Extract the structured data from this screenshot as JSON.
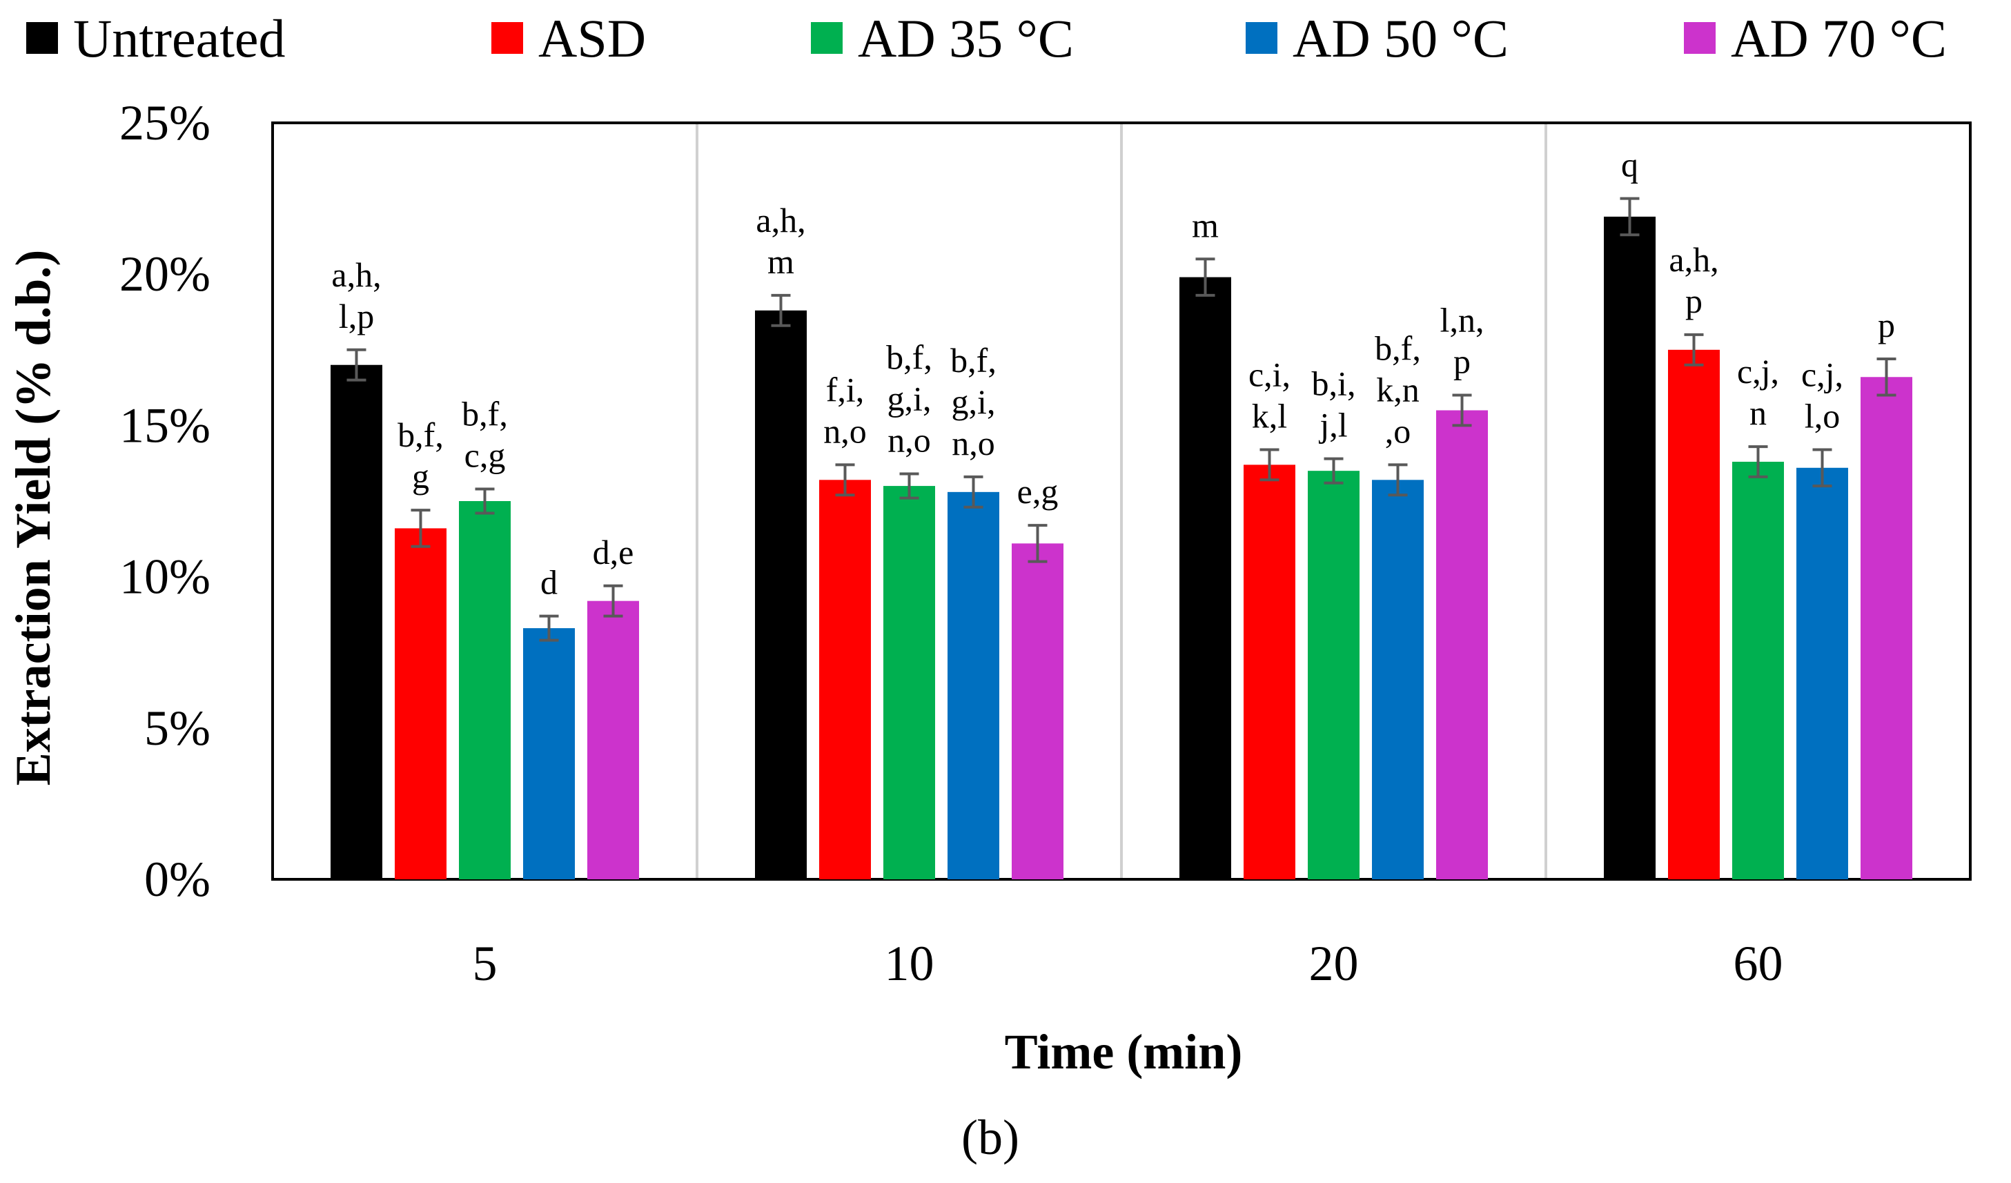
{
  "chart_data": {
    "type": "bar",
    "title": "",
    "panel_label": "(b)",
    "xlabel": "Time (min)",
    "ylabel": "Extraction Yield (% d.b.)",
    "ylim": [
      0,
      25
    ],
    "yticks": [
      0,
      5,
      10,
      15,
      20,
      25
    ],
    "ytick_labels": [
      "0%",
      "5%",
      "10%",
      "15%",
      "20%",
      "25%"
    ],
    "categories": [
      "5",
      "10",
      "20",
      "60"
    ],
    "grid": false,
    "legend_position": "top",
    "series": [
      {
        "name": "Untreated",
        "color": "#000000",
        "values": [
          17.0,
          18.8,
          19.9,
          21.9
        ],
        "errors": [
          0.5,
          0.5,
          0.6,
          0.6
        ],
        "letters": [
          [
            "a,h,",
            "l,p"
          ],
          [
            "a,h,",
            "m"
          ],
          [
            "m"
          ],
          [
            "q"
          ]
        ]
      },
      {
        "name": "ASD",
        "color": "#ff0000",
        "values": [
          11.6,
          13.2,
          13.7,
          17.5
        ],
        "errors": [
          0.6,
          0.5,
          0.5,
          0.5
        ],
        "letters": [
          [
            "b,f,",
            "g"
          ],
          [
            "f,i,",
            "n,o"
          ],
          [
            "c,i,",
            "k,l"
          ],
          [
            "a,h,",
            "p"
          ]
        ]
      },
      {
        "name": "AD 35 °C",
        "color": "#00b050",
        "values": [
          12.5,
          13.0,
          13.5,
          13.8
        ],
        "errors": [
          0.4,
          0.4,
          0.4,
          0.5
        ],
        "letters": [
          [
            "b,f,",
            "c,g"
          ],
          [
            "b,f,",
            "g,i,",
            "n,o"
          ],
          [
            "b,i,",
            "j,l"
          ],
          [
            "c,j,",
            "n"
          ]
        ]
      },
      {
        "name": "AD 50 °C",
        "color": "#0070c0",
        "values": [
          8.3,
          12.8,
          13.2,
          13.6
        ],
        "errors": [
          0.4,
          0.5,
          0.5,
          0.6
        ],
        "letters": [
          [
            "d"
          ],
          [
            "b,f,",
            "g,i,",
            "n,o"
          ],
          [
            "b,f,",
            "k,n",
            ",o"
          ],
          [
            "c,j,",
            "l,o"
          ]
        ]
      },
      {
        "name": "AD 70 °C",
        "color": "#cc33cc",
        "values": [
          9.2,
          11.1,
          15.5,
          16.6
        ],
        "errors": [
          0.5,
          0.6,
          0.5,
          0.6
        ],
        "letters": [
          [
            "d,e"
          ],
          [
            "e,g"
          ],
          [
            "l,n,",
            "p"
          ],
          [
            "p"
          ]
        ]
      }
    ]
  }
}
